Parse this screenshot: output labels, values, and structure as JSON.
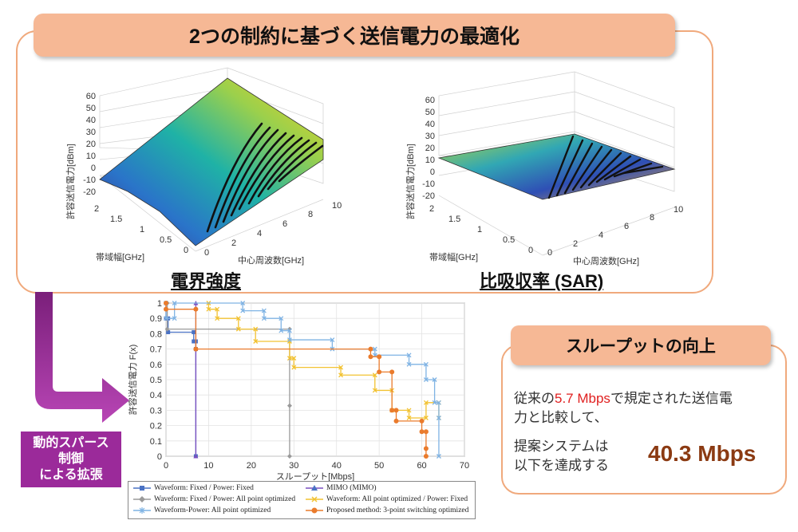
{
  "header": {
    "title": "2つの制約に基づく送信電力の最適化"
  },
  "surface_plots": [
    {
      "caption": "電界強度",
      "zlabel": "許容送信電力[dBm]",
      "xlabel": "中心周波数[GHz]",
      "ylabel": "帯域幅[GHz]",
      "zticks": [
        "60",
        "50",
        "40",
        "30",
        "20",
        "10",
        "0",
        "-10",
        "-20"
      ],
      "xticks": [
        "0",
        "2",
        "4",
        "6",
        "8",
        "10"
      ],
      "yticks": [
        "2",
        "1.5",
        "1",
        "0.5",
        "0"
      ]
    },
    {
      "caption": "比吸収率 (SAR)",
      "zlabel": "許容送信電力[dBm]",
      "xlabel": "中心周波数[GHz]",
      "ylabel": "帯域幅[GHz]",
      "zticks": [
        "60",
        "50",
        "40",
        "30",
        "20",
        "10",
        "0",
        "-10",
        "-20"
      ],
      "xticks": [
        "0",
        "2",
        "4",
        "6",
        "8",
        "10"
      ],
      "yticks": [
        "2",
        "1.5",
        "1",
        "0.5",
        "0"
      ]
    }
  ],
  "side_badge": {
    "line1": "動的スパース",
    "line2": "制御",
    "line3": "による拡張"
  },
  "chart_data": {
    "type": "line",
    "xlabel": "スループット[Mbps]",
    "ylabel": "許容送信電力 F(x)",
    "xlim": [
      0,
      70
    ],
    "ylim": [
      0,
      1
    ],
    "xticks": [
      "0",
      "10",
      "20",
      "30",
      "40",
      "50",
      "60",
      "70"
    ],
    "yticks": [
      "0",
      "0.1",
      "0.2",
      "0.3",
      "0.4",
      "0.5",
      "0.6",
      "0.7",
      "0.8",
      "0.9",
      "1"
    ],
    "grid": true,
    "legend_position": "bottom",
    "series": [
      {
        "name": "Waveform: Fixed / Power: Fixed",
        "color": "#4a72c4",
        "marker": "square",
        "x": [
          0,
          0,
          0.5,
          0.5,
          6.5,
          6.5,
          7,
          7,
          7
        ],
        "y": [
          1.0,
          0.9,
          0.9,
          0.81,
          0.81,
          0.75,
          0.75,
          0.7,
          0
        ]
      },
      {
        "name": "MIMO (MIMO)",
        "color": "#7a4fc0",
        "marker": "triangle",
        "x": [
          7,
          7
        ],
        "y": [
          1.0,
          0
        ]
      },
      {
        "name": "Waveform: Fixed / Power: All point optimized",
        "color": "#9a9a9a",
        "marker": "diamond",
        "x": [
          0.3,
          0.3,
          29,
          29,
          29
        ],
        "y": [
          1.0,
          0.83,
          0.83,
          0.33,
          0
        ]
      },
      {
        "name": "Waveform: All point optimized / Power: Fixed",
        "color": "#f2c231",
        "marker": "x",
        "x": [
          10,
          10,
          12,
          12,
          17,
          17,
          21,
          21,
          29,
          29,
          30,
          30,
          41,
          41,
          49,
          49,
          53,
          53,
          57,
          57,
          61,
          61,
          64,
          64
        ],
        "y": [
          1.0,
          0.96,
          0.96,
          0.9,
          0.9,
          0.83,
          0.83,
          0.75,
          0.75,
          0.64,
          0.64,
          0.58,
          0.58,
          0.53,
          0.53,
          0.43,
          0.43,
          0.3,
          0.3,
          0.25,
          0.25,
          0.35,
          0.35,
          0.25
        ]
      },
      {
        "name": "Waveform-Power: All point optimized",
        "color": "#7fb3e4",
        "marker": "star",
        "x": [
          0,
          0,
          2,
          2,
          18,
          18,
          23,
          23,
          27,
          27,
          29,
          29,
          39,
          39,
          49,
          49,
          57,
          57,
          61,
          61,
          63,
          63,
          64,
          64,
          64
        ],
        "y": [
          1.0,
          0.9,
          0.9,
          1.0,
          1.0,
          0.95,
          0.95,
          0.9,
          0.9,
          0.82,
          0.82,
          0.76,
          0.76,
          0.7,
          0.7,
          0.66,
          0.66,
          0.6,
          0.6,
          0.5,
          0.5,
          0.35,
          0.35,
          0.25,
          0
        ]
      },
      {
        "name": "Proposed method: 3-point switching optimized",
        "color": "#ea7b2c",
        "marker": "circle",
        "x": [
          0,
          0,
          7,
          7,
          48,
          48,
          50,
          50,
          53,
          53,
          54,
          54,
          60,
          60,
          61,
          61,
          61
        ],
        "y": [
          1.0,
          0.96,
          0.96,
          0.7,
          0.7,
          0.65,
          0.65,
          0.55,
          0.55,
          0.3,
          0.3,
          0.23,
          0.23,
          0.16,
          0.16,
          0.05,
          0
        ]
      }
    ]
  },
  "throughput": {
    "title": "スループットの向上",
    "line1_pre": "従来の",
    "line1_highlight": "5.7 Mbps",
    "line1_post": "で規定された送信電",
    "line2": "力と比較して、",
    "line3": "提案システムは",
    "line4": "以下を達成する",
    "result": "40.3 Mbps"
  },
  "colors": {
    "accent_orange": "#f6b895",
    "frame_orange": "#f0a97c",
    "badge_purple": "#9b2a9a",
    "result_brown": "#8b3a12",
    "highlight_red": "#e02020"
  }
}
